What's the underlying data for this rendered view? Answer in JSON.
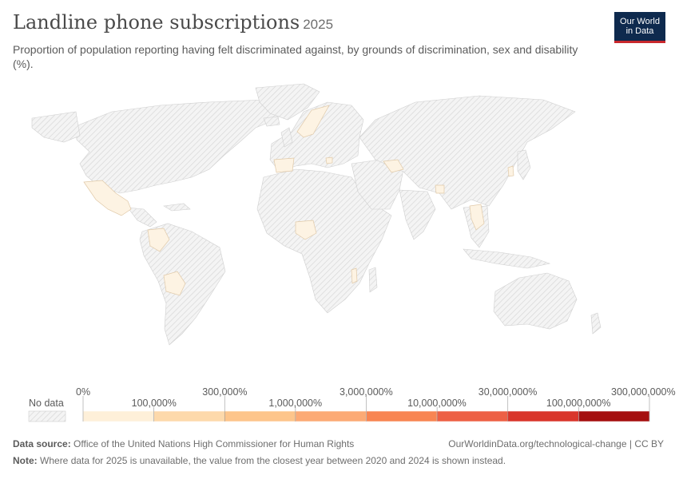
{
  "header": {
    "title": "Landline phone subscriptions",
    "year": "2025",
    "subtitle": "Proportion of population reporting having felt discriminated against, by grounds of discrimination, sex and disability (%)."
  },
  "logo": {
    "line1": "Our World",
    "line2": "in Data"
  },
  "legend": {
    "no_data_label": "No data",
    "upper_ticks": [
      "0%",
      "300,000%",
      "3,000,000%",
      "30,000,000%",
      "300,000,000%"
    ],
    "lower_ticks": [
      "100,000%",
      "1,000,000%",
      "10,000,000%",
      "100,000,000%"
    ],
    "colors": [
      "#fef0d9",
      "#fdd9ab",
      "#fdc58b",
      "#fcaa75",
      "#f88552",
      "#ed6045",
      "#d9362b",
      "#a50f0f"
    ]
  },
  "footer": {
    "source_label": "Data source:",
    "source_text": "Office of the United Nations High Commissioner for Human Rights",
    "note_label": "Note:",
    "note_text": "Where data for 2025 is unavailable, the value from the closest year between 2020 and 2024 is shown instead.",
    "link": "OurWorldinData.org/technological-change | CC BY"
  },
  "map_data": {
    "no_data_color": "#ececec",
    "highlighted_color": "#fdf3e3",
    "highlighted_countries": [
      "Mexico",
      "Colombia",
      "Bolivia",
      "Spain",
      "Norway",
      "Sweden",
      "Bosnia and Herzegovina",
      "Nigeria",
      "Uzbekistan",
      "Bangladesh",
      "Thailand",
      "Malawi"
    ]
  }
}
